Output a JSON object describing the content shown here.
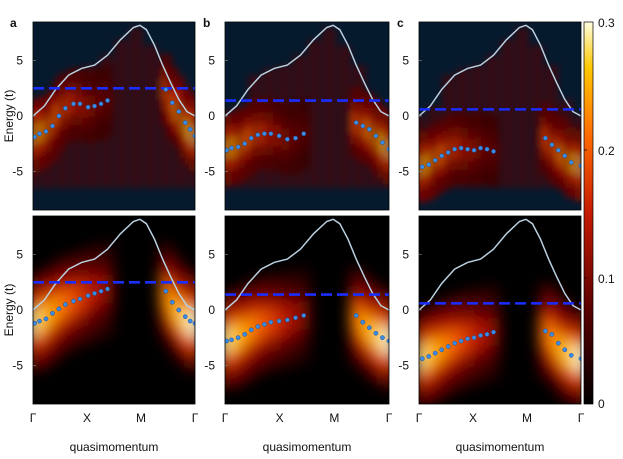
{
  "chart_data": {
    "type": "heatmap",
    "panel_letters": [
      "a",
      "b",
      "c"
    ],
    "ylabel": "Energy (t)",
    "xlabel": "quasimomentum",
    "xticks": [
      "Γ",
      "X",
      "M",
      "Γ"
    ],
    "yticks": [
      5,
      0,
      -5
    ],
    "ylim": [
      -8.5,
      8.5
    ],
    "colorbar": {
      "ticks": [
        "0.3",
        "0.2",
        "0.1",
        "0"
      ],
      "range": [
        0,
        0.3
      ]
    },
    "colors": {
      "background": "#061a2e",
      "fermi_line": "#1a2fff",
      "band": "#b9d0e0",
      "points": "#3a8ce6"
    },
    "bare_band": {
      "x": [
        0,
        0.07,
        0.14,
        0.22,
        0.3,
        0.38,
        0.46,
        0.54,
        0.62,
        0.66,
        0.7,
        0.75,
        0.8,
        0.85,
        0.9,
        0.95,
        1.0
      ],
      "y": [
        0,
        0.9,
        2.4,
        3.7,
        4.3,
        4.6,
        5.5,
        6.9,
        8.0,
        8.2,
        7.8,
        6.4,
        4.6,
        3.0,
        1.5,
        0.4,
        0
      ]
    },
    "columns": [
      {
        "fermi_level": 2.5,
        "top_points": {
          "x": [
            0.01,
            0.04,
            0.08,
            0.12,
            0.16,
            0.2,
            0.25,
            0.29,
            0.34,
            0.38,
            0.42,
            0.46,
            0.82,
            0.86,
            0.9,
            0.94,
            0.97,
            1.0
          ],
          "y": [
            -1.9,
            -1.6,
            -1.4,
            -0.9,
            0.0,
            0.7,
            1.1,
            1.1,
            0.8,
            0.9,
            1.1,
            1.4,
            2.4,
            1.2,
            0.4,
            -0.6,
            -1.2,
            -1.8
          ]
        },
        "bottom_points": {
          "x": [
            0.01,
            0.04,
            0.08,
            0.12,
            0.16,
            0.2,
            0.25,
            0.29,
            0.34,
            0.38,
            0.42,
            0.46,
            0.82,
            0.86,
            0.9,
            0.94,
            0.97,
            1.0
          ],
          "y": [
            -1.2,
            -1.0,
            -0.8,
            -0.3,
            0.1,
            0.5,
            0.8,
            1.0,
            1.3,
            1.5,
            1.7,
            1.9,
            1.7,
            0.7,
            0.0,
            -0.6,
            -1.0,
            -1.2
          ]
        }
      },
      {
        "fermi_level": 1.4,
        "top_points": {
          "x": [
            0.01,
            0.04,
            0.08,
            0.12,
            0.16,
            0.2,
            0.24,
            0.28,
            0.33,
            0.38,
            0.43,
            0.48,
            0.8,
            0.84,
            0.88,
            0.92,
            0.96,
            1.0
          ],
          "y": [
            -3.1,
            -2.9,
            -2.8,
            -2.5,
            -2.0,
            -1.7,
            -1.6,
            -1.6,
            -1.8,
            -2.1,
            -2.0,
            -1.6,
            -0.6,
            -0.9,
            -1.2,
            -1.8,
            -2.4,
            -3.0
          ]
        },
        "bottom_points": {
          "x": [
            0.01,
            0.04,
            0.08,
            0.12,
            0.16,
            0.2,
            0.24,
            0.28,
            0.33,
            0.38,
            0.43,
            0.48,
            0.8,
            0.84,
            0.88,
            0.92,
            0.96,
            1.0
          ],
          "y": [
            -2.8,
            -2.7,
            -2.5,
            -2.2,
            -1.8,
            -1.5,
            -1.3,
            -1.1,
            -1.0,
            -0.9,
            -0.7,
            -0.5,
            -0.5,
            -1.1,
            -1.6,
            -2.1,
            -2.5,
            -2.8
          ]
        }
      },
      {
        "fermi_level": 0.6,
        "top_points": {
          "x": [
            0.02,
            0.06,
            0.1,
            0.14,
            0.18,
            0.22,
            0.26,
            0.3,
            0.34,
            0.38,
            0.42,
            0.46,
            0.78,
            0.82,
            0.86,
            0.9,
            0.94,
            1.0
          ],
          "y": [
            -4.6,
            -4.4,
            -4.0,
            -3.6,
            -3.3,
            -3.0,
            -2.9,
            -3.0,
            -3.1,
            -2.9,
            -3.0,
            -3.2,
            -2.0,
            -2.6,
            -3.1,
            -3.6,
            -4.2,
            -4.5
          ]
        },
        "bottom_points": {
          "x": [
            0.02,
            0.06,
            0.1,
            0.14,
            0.18,
            0.22,
            0.26,
            0.3,
            0.34,
            0.38,
            0.42,
            0.46,
            0.78,
            0.82,
            0.86,
            0.9,
            0.94,
            1.0
          ],
          "y": [
            -4.4,
            -4.2,
            -3.9,
            -3.6,
            -3.3,
            -3.0,
            -2.8,
            -2.6,
            -2.5,
            -2.3,
            -2.2,
            -2.0,
            -1.9,
            -2.2,
            -3.0,
            -3.6,
            -4.1,
            -4.4
          ]
        }
      }
    ]
  }
}
